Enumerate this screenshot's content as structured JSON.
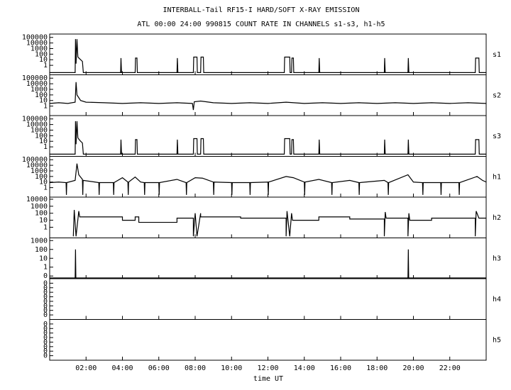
{
  "figure": {
    "title": "INTERBALL-Tail RF15-I HARD/SOFT X-RAY EMISSION",
    "subtitle": "ATL 00:00 24:00 990815  COUNT RATE IN CHANNELS s1-s3, h1-h5",
    "x_label": "time UT",
    "xlim": [
      0,
      24
    ],
    "xticks": [
      {
        "value": 2,
        "label": "02:00"
      },
      {
        "value": 4,
        "label": "04:00"
      },
      {
        "value": 6,
        "label": "06:00"
      },
      {
        "value": 8,
        "label": "08:00"
      },
      {
        "value": 10,
        "label": "10:00"
      },
      {
        "value": 12,
        "label": "12:00"
      },
      {
        "value": 14,
        "label": "14:00"
      },
      {
        "value": 16,
        "label": "16:00"
      },
      {
        "value": 18,
        "label": "18:00"
      },
      {
        "value": 20,
        "label": "20:00"
      },
      {
        "value": 22,
        "label": "22:00"
      }
    ]
  },
  "chart_data": [
    {
      "type": "line",
      "label": "s1",
      "log": true,
      "ylim": [
        0.02,
        400000
      ],
      "yticks": [
        1,
        10,
        100,
        1000,
        10000,
        100000
      ],
      "series": [
        {
          "color": "#000000",
          "x": [
            0,
            1.4,
            1.42,
            1.45,
            1.5,
            1.55,
            1.7,
            1.8,
            1.85,
            3.9,
            3.92,
            3.95,
            4.7,
            4.72,
            4.8,
            4.82,
            7.0,
            7.02,
            7.05,
            7.9,
            7.92,
            8.1,
            8.12,
            8.3,
            8.32,
            8.45,
            8.47,
            12.9,
            12.92,
            13.2,
            13.22,
            13.3,
            13.32,
            13.4,
            13.42,
            14.8,
            14.82,
            14.85,
            18.4,
            18.42,
            18.45,
            19.7,
            19.72,
            19.75,
            23.4,
            23.42,
            23.6,
            23.62,
            24
          ],
          "values": [
            0.05,
            0.05,
            50000,
            2,
            50000,
            30,
            10,
            5,
            0.05,
            0.05,
            20,
            0.05,
            0.05,
            20,
            20,
            0.05,
            0.05,
            20,
            0.05,
            0.05,
            30,
            30,
            0.05,
            0.05,
            30,
            30,
            0.05,
            0.05,
            30,
            30,
            0.05,
            0.05,
            20,
            20,
            0.05,
            0.05,
            20,
            0.05,
            0.05,
            20,
            0.05,
            0.05,
            20,
            0.05,
            0.05,
            20,
            20,
            0.05,
            0.05
          ]
        }
      ]
    },
    {
      "type": "line",
      "label": "s2",
      "log": true,
      "ylim": [
        0.02,
        400000
      ],
      "yticks": [
        1,
        10,
        100,
        1000,
        10000,
        100000
      ],
      "series": [
        {
          "color": "#000000",
          "x": [
            0,
            0.5,
            1,
            1.4,
            1.45,
            1.5,
            1.7,
            2,
            3,
            4,
            5,
            6,
            7,
            7.85,
            7.9,
            7.95,
            8.3,
            9,
            10,
            11,
            12,
            13,
            14,
            15,
            16,
            17,
            18,
            19,
            20,
            21,
            22,
            23,
            24
          ],
          "values": [
            3,
            4,
            3,
            5,
            20000,
            100,
            10,
            5,
            4,
            3,
            4,
            3,
            4,
            3,
            0.2,
            6,
            8,
            4,
            3,
            4,
            3,
            5,
            3,
            4,
            3,
            4,
            3,
            4,
            3,
            4,
            3,
            4,
            3
          ]
        }
      ]
    },
    {
      "type": "line",
      "label": "s3",
      "log": true,
      "ylim": [
        0.02,
        400000
      ],
      "yticks": [
        1,
        10,
        100,
        1000,
        10000,
        100000
      ],
      "series": [
        {
          "color": "#000000",
          "x": [
            0,
            1.4,
            1.42,
            1.45,
            1.5,
            1.55,
            1.7,
            1.8,
            1.85,
            3.9,
            3.92,
            3.95,
            4.7,
            4.72,
            4.8,
            4.82,
            7.0,
            7.02,
            7.05,
            7.9,
            7.92,
            8.1,
            8.12,
            8.3,
            8.32,
            8.45,
            8.47,
            12.9,
            12.92,
            13.2,
            13.22,
            13.3,
            13.32,
            13.4,
            13.42,
            14.8,
            14.82,
            14.85,
            18.4,
            18.42,
            18.45,
            19.7,
            19.72,
            19.75,
            23.4,
            23.42,
            23.6,
            23.62,
            24
          ],
          "values": [
            0.05,
            0.05,
            40000,
            3,
            40000,
            40,
            10,
            5,
            0.05,
            0.05,
            20,
            0.05,
            0.05,
            20,
            20,
            0.05,
            0.05,
            20,
            0.05,
            0.05,
            30,
            30,
            0.05,
            0.05,
            30,
            30,
            0.05,
            0.05,
            30,
            30,
            0.05,
            0.05,
            20,
            20,
            0.05,
            0.05,
            20,
            0.05,
            0.05,
            20,
            0.05,
            0.05,
            20,
            0.05,
            0.05,
            20,
            20,
            0.05,
            0.05
          ]
        }
      ]
    },
    {
      "type": "line",
      "label": "h1",
      "log": true,
      "ylim": [
        0.02,
        400000
      ],
      "yticks": [
        1,
        10,
        100,
        1000,
        10000,
        100000
      ],
      "series": [
        {
          "color": "#000000",
          "x": [
            0,
            0.5,
            0.9,
            0.92,
            0.94,
            1.4,
            1.5,
            1.6,
            1.8,
            1.82,
            1.84,
            2.5,
            2.7,
            2.72,
            2.74,
            3.5,
            3.52,
            3.54,
            4,
            4.3,
            4.32,
            4.34,
            4.7,
            5,
            5.2,
            5.22,
            5.24,
            6,
            6.02,
            6.04,
            7,
            7.5,
            7.52,
            7.54,
            8,
            8.4,
            9,
            9.02,
            9.04,
            10,
            10.02,
            10.04,
            11,
            11.02,
            11.04,
            12,
            12.02,
            12.04,
            13,
            13.4,
            14,
            14.02,
            14.04,
            14.8,
            15.5,
            15.52,
            15.54,
            16.5,
            17,
            17.02,
            17.04,
            18.4,
            18.6,
            18.62,
            18.64,
            19.7,
            20,
            20.5,
            20.52,
            20.54,
            21.5,
            21.52,
            21.54,
            22.5,
            22.52,
            22.54,
            23.5,
            23.8,
            24
          ],
          "values": [
            8,
            10,
            8,
            0.05,
            8,
            20,
            20000,
            200,
            30,
            0.05,
            20,
            10,
            8,
            0.05,
            8,
            8,
            0.05,
            8,
            60,
            10,
            0.05,
            10,
            80,
            10,
            8,
            0.05,
            8,
            8,
            0.05,
            8,
            30,
            8,
            0.05,
            8,
            60,
            50,
            10,
            0.05,
            10,
            8,
            0.05,
            8,
            8,
            0.05,
            8,
            10,
            0.05,
            10,
            100,
            60,
            10,
            0.05,
            10,
            30,
            8,
            0.05,
            8,
            20,
            8,
            0.05,
            8,
            20,
            8,
            0.05,
            8,
            200,
            10,
            8,
            0.05,
            8,
            8,
            0.05,
            8,
            8,
            0.05,
            8,
            100,
            20,
            10
          ]
        }
      ]
    },
    {
      "type": "line",
      "label": "h2",
      "log": true,
      "ylim": [
        0.03,
        20000
      ],
      "yticks": [
        1,
        10,
        100,
        1000,
        10000
      ],
      "series": [
        {
          "color": "#000000",
          "x": [
            1.3,
            1.35,
            1.45,
            1.6,
            1.65,
            4,
            4,
            4.7,
            4.7,
            4.9,
            4.9,
            7,
            7,
            7.9,
            7.9,
            8,
            8.1,
            8.3,
            8.3,
            10.5,
            10.5,
            13,
            13,
            13.05,
            13.2,
            13.3,
            13.35,
            14.8,
            14.8,
            16.5,
            16.5,
            18.4,
            18.4,
            18.45,
            18.5,
            19.7,
            19.7,
            19.75,
            19.8,
            21,
            21,
            23.4,
            23.4,
            23.45,
            23.6,
            24
          ],
          "values": [
            0.05,
            300,
            0.05,
            200,
            30,
            30,
            10,
            10,
            30,
            30,
            5,
            5,
            20,
            20,
            0.05,
            100,
            0.05,
            100,
            30,
            30,
            20,
            20,
            0.05,
            200,
            0.05,
            100,
            10,
            10,
            30,
            30,
            15,
            15,
            0.05,
            150,
            20,
            20,
            0.05,
            100,
            10,
            10,
            20,
            20,
            0.05,
            200,
            20,
            20
          ]
        }
      ]
    },
    {
      "type": "line",
      "label": "h3",
      "log": true,
      "ylim": [
        0.05,
        2000
      ],
      "yticks": [
        {
          "value": 0.1,
          "label": "0"
        },
        1,
        10,
        100,
        1000
      ],
      "series": [
        {
          "color": "#000000",
          "x": [
            0,
            1.4,
            1.42,
            1.44,
            19.7,
            19.72,
            19.74,
            24
          ],
          "values": [
            0.06,
            0.06,
            100,
            0.06,
            0.06,
            100,
            0.06,
            0.06
          ]
        }
      ]
    },
    {
      "type": "line",
      "label": "h4",
      "log": true,
      "ylim": [
        1e-09,
        1
      ],
      "yticks": [
        {
          "value": 1e-08,
          "label": "0"
        },
        {
          "value": 1e-07,
          "label": "0"
        },
        {
          "value": 1e-06,
          "label": "0"
        },
        {
          "value": 1e-05,
          "label": "0"
        },
        {
          "value": 0.0001,
          "label": "0"
        },
        {
          "value": 0.001,
          "label": "0"
        },
        {
          "value": 0.01,
          "label": "0"
        },
        {
          "value": 0.1,
          "label": "0"
        }
      ],
      "series": []
    },
    {
      "type": "line",
      "label": "h5",
      "log": true,
      "ylim": [
        1e-09,
        1
      ],
      "yticks": [
        {
          "value": 1e-08,
          "label": "0"
        },
        {
          "value": 1e-07,
          "label": "0"
        },
        {
          "value": 1e-06,
          "label": "0"
        },
        {
          "value": 1e-05,
          "label": "0"
        },
        {
          "value": 0.0001,
          "label": "0"
        },
        {
          "value": 0.001,
          "label": "0"
        },
        {
          "value": 0.01,
          "label": "0"
        },
        {
          "value": 0.1,
          "label": "0"
        }
      ],
      "series": []
    }
  ]
}
